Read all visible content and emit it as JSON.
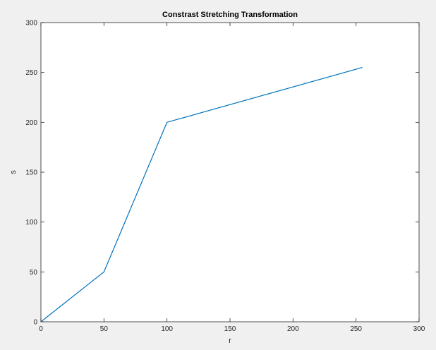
{
  "chart_data": {
    "type": "line",
    "title": "Constrast Stretching Transformation",
    "xlabel": "r",
    "ylabel": "s",
    "xlim": [
      0,
      300
    ],
    "ylim": [
      0,
      300
    ],
    "xticks": [
      "0",
      "50",
      "100",
      "150",
      "200",
      "250",
      "300"
    ],
    "yticks": [
      "0",
      "50",
      "100",
      "150",
      "200",
      "250",
      "300"
    ],
    "grid": false,
    "series": [
      {
        "x": [
          0,
          50,
          100,
          255
        ],
        "y": [
          0,
          50,
          200,
          255
        ],
        "color": "#0072bd"
      }
    ]
  },
  "colors": {
    "figure_background": "#f0f0f0",
    "axes_background": "#ffffff",
    "axis_color": "#262626"
  }
}
